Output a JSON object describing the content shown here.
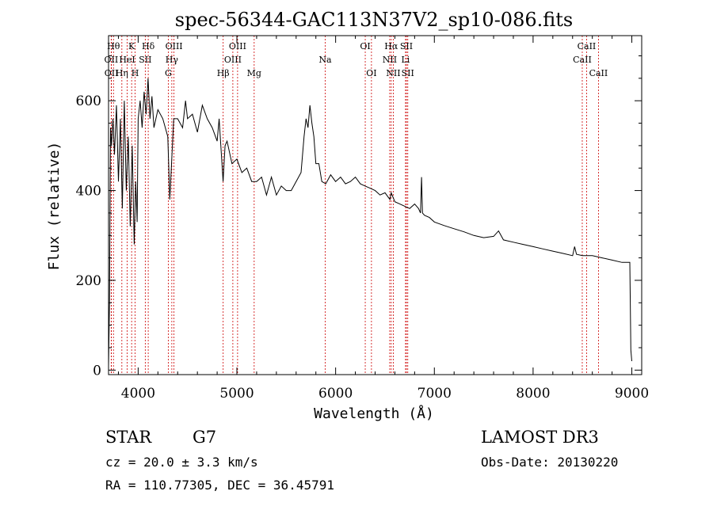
{
  "chart_data": {
    "type": "line",
    "title": "spec-56344-GAC113N37V2_sp10-086.fits",
    "xlabel": "Wavelength (Å)",
    "ylabel": "Flux (relative)",
    "xlim": [
      3700,
      9100
    ],
    "ylim": [
      -10,
      745
    ],
    "x_ticks": [
      4000,
      5000,
      6000,
      7000,
      8000,
      9000
    ],
    "x_tick_labels": [
      "4000",
      "5000",
      "6000",
      "7000",
      "8000",
      "9000"
    ],
    "y_ticks": [
      0,
      200,
      400,
      600
    ],
    "y_tick_labels": [
      "0",
      "200",
      "400",
      "600"
    ],
    "grid": false,
    "series": [
      {
        "name": "flux",
        "x": [
          3700,
          3710,
          3720,
          3730,
          3745,
          3760,
          3780,
          3800,
          3820,
          3840,
          3860,
          3880,
          3900,
          3920,
          3940,
          3960,
          3975,
          3990,
          4000,
          4020,
          4040,
          4060,
          4080,
          4100,
          4120,
          4140,
          4160,
          4200,
          4250,
          4300,
          4320,
          4340,
          4360,
          4400,
          4450,
          4480,
          4500,
          4550,
          4600,
          4650,
          4700,
          4750,
          4800,
          4820,
          4860,
          4880,
          4900,
          4950,
          5000,
          5050,
          5100,
          5150,
          5200,
          5250,
          5300,
          5350,
          5400,
          5450,
          5500,
          5550,
          5600,
          5650,
          5680,
          5700,
          5720,
          5740,
          5760,
          5780,
          5800,
          5830,
          5860,
          5900,
          5950,
          6000,
          6050,
          6100,
          6150,
          6200,
          6250,
          6300,
          6350,
          6400,
          6450,
          6500,
          6550,
          6563,
          6600,
          6650,
          6700,
          6750,
          6800,
          6840,
          6860,
          6870,
          6880,
          6900,
          6950,
          7000,
          7100,
          7200,
          7300,
          7400,
          7500,
          7600,
          7650,
          7700,
          7800,
          7900,
          8000,
          8100,
          8200,
          8300,
          8400,
          8420,
          8440,
          8500,
          8600,
          8700,
          8800,
          8900,
          8980,
          8990,
          9000
        ],
        "values": [
          10,
          150,
          540,
          500,
          560,
          480,
          590,
          420,
          560,
          360,
          600,
          400,
          520,
          320,
          500,
          280,
          420,
          330,
          560,
          600,
          540,
          620,
          570,
          650,
          560,
          610,
          540,
          580,
          560,
          520,
          380,
          470,
          560,
          560,
          540,
          600,
          560,
          570,
          530,
          590,
          560,
          540,
          510,
          560,
          420,
          500,
          510,
          460,
          470,
          440,
          450,
          420,
          420,
          430,
          390,
          430,
          390,
          410,
          400,
          400,
          420,
          440,
          520,
          560,
          540,
          590,
          550,
          520,
          460,
          460,
          420,
          415,
          435,
          420,
          430,
          415,
          420,
          430,
          415,
          410,
          405,
          400,
          390,
          395,
          380,
          395,
          375,
          370,
          365,
          360,
          370,
          360,
          350,
          430,
          350,
          345,
          340,
          330,
          322,
          315,
          308,
          300,
          295,
          298,
          310,
          290,
          285,
          280,
          275,
          270,
          265,
          260,
          255,
          275,
          258,
          255,
          255,
          250,
          245,
          240,
          240,
          45,
          20
        ]
      }
    ],
    "lines": [
      {
        "name": "OII",
        "x": 3727,
        "row": 2
      },
      {
        "name": "OII",
        "x": 3729,
        "row": 3
      },
      {
        "name": "Hθ",
        "x": 3750,
        "row": 1
      },
      {
        "name": "Hη",
        "x": 3835,
        "row": 3
      },
      {
        "name": "HeI",
        "x": 3889,
        "row": 2
      },
      {
        "name": "K",
        "x": 3934,
        "row": 1
      },
      {
        "name": "H",
        "x": 3969,
        "row": 3
      },
      {
        "name": "SII",
        "x": 4072,
        "row": 2
      },
      {
        "name": "Hδ",
        "x": 4102,
        "row": 1
      },
      {
        "name": "G",
        "x": 4305,
        "row": 3
      },
      {
        "name": "Hγ",
        "x": 4341,
        "row": 2
      },
      {
        "name": "OIII",
        "x": 4363,
        "row": 1
      },
      {
        "name": "Hβ",
        "x": 4861,
        "row": 3
      },
      {
        "name": "OIII",
        "x": 4959,
        "row": 2
      },
      {
        "name": "OIII",
        "x": 5007,
        "row": 1
      },
      {
        "name": "Mg",
        "x": 5175,
        "row": 3
      },
      {
        "name": "Na",
        "x": 5894,
        "row": 2
      },
      {
        "name": "OI",
        "x": 6300,
        "row": 1
      },
      {
        "name": "OI",
        "x": 6363,
        "row": 3
      },
      {
        "name": "NII",
        "x": 6548,
        "row": 2
      },
      {
        "name": "Hα",
        "x": 6563,
        "row": 1
      },
      {
        "name": "NII",
        "x": 6584,
        "row": 3
      },
      {
        "name": "Li",
        "x": 6708,
        "row": 2
      },
      {
        "name": "SII",
        "x": 6717,
        "row": 1
      },
      {
        "name": "SII",
        "x": 6731,
        "row": 3
      },
      {
        "name": "CaII",
        "x": 8498,
        "row": 2
      },
      {
        "name": "CaII",
        "x": 8542,
        "row": 1
      },
      {
        "name": "CaII",
        "x": 8662,
        "row": 3
      }
    ]
  },
  "footer": {
    "object_class": "STAR",
    "subclass": "G7",
    "survey": "LAMOST DR3",
    "redshift": "cz = 20.0 ± 3.3 km/s",
    "obs_date": "Obs-Date: 20130220",
    "coords": "RA = 110.77305, DEC =  36.45791"
  },
  "colors": {
    "axis": "#000000",
    "spectrum": "#000000",
    "line_marker": "#cc0000"
  }
}
